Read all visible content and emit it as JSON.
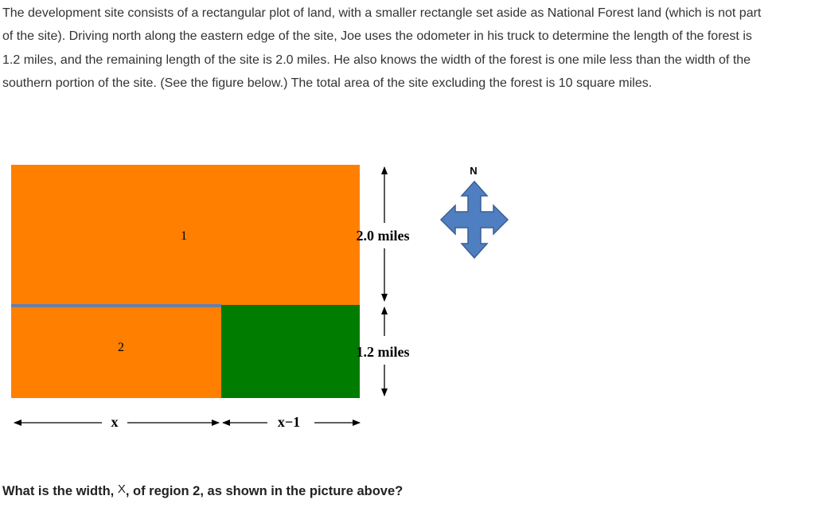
{
  "problem": {
    "paragraph": "The development site consists of a rectangular plot of land, with a smaller rectangle set aside as National Forest land (which is not part of the site). Driving north along the eastern edge of the site, Joe uses the odometer in his truck to determine the length of the forest is 1.2 miles, and the remaining length of the site is 2.0 miles. He also knows the width of the forest is one mile less than the width of the southern portion of the site. (See the figure below.) The total area of the site excluding the forest is 10 square miles.",
    "question_prefix": "What is the width, ",
    "question_var": "X",
    "question_suffix": ", of region 2, as shown in the picture above?"
  },
  "figure": {
    "region1_label": "1",
    "region2_label": "2",
    "north_length_label": "2.0 miles",
    "forest_length_label": "1.2 miles",
    "width_label": "x",
    "forest_width_label": "x−1",
    "compass_label": "N",
    "colors": {
      "site": "#ff8000",
      "forest": "#007c00",
      "divider": "#6a7fa6",
      "compass": "#4f7fc0",
      "compass_stroke": "#3a5f95"
    }
  }
}
